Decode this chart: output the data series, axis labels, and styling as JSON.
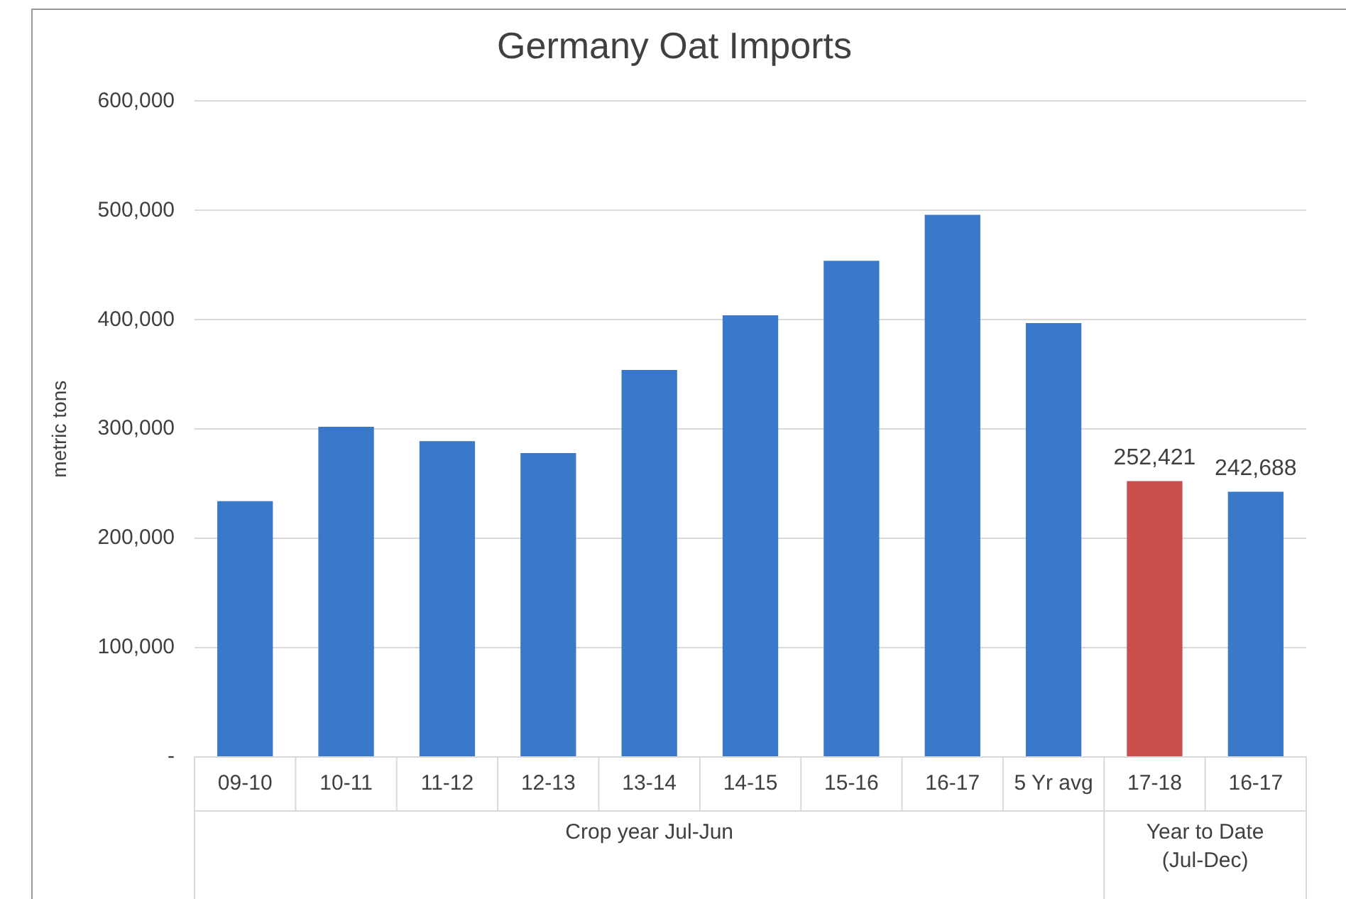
{
  "chart_data": {
    "type": "bar",
    "title": "Germany Oat Imports",
    "ylabel": "metric tons",
    "categories": [
      "09-10",
      "10-11",
      "11-12",
      "12-13",
      "13-14",
      "14-15",
      "15-16",
      "16-17",
      "5 Yr avg",
      "17-18",
      "16-17"
    ],
    "values": [
      234000,
      302000,
      289000,
      278000,
      354000,
      404000,
      454000,
      496000,
      397000,
      252421,
      242688
    ],
    "colors": [
      "#3a78c9",
      "#3a78c9",
      "#3a78c9",
      "#3a78c9",
      "#3a78c9",
      "#3a78c9",
      "#3a78c9",
      "#3a78c9",
      "#3a78c9",
      "#c9504d",
      "#3a78c9"
    ],
    "value_labels": [
      null,
      null,
      null,
      null,
      null,
      null,
      null,
      null,
      null,
      "252,421",
      "242,688"
    ],
    "ylim": [
      0,
      600000
    ],
    "yticks": [
      {
        "value": 0,
        "label": "-"
      },
      {
        "value": 100000,
        "label": "100,000"
      },
      {
        "value": 200000,
        "label": "200,000"
      },
      {
        "value": 300000,
        "label": "300,000"
      },
      {
        "value": 400000,
        "label": "400,000"
      },
      {
        "value": 500000,
        "label": "500,000"
      },
      {
        "value": 600000,
        "label": "600,000"
      }
    ],
    "grid": "y",
    "legend": false,
    "annotations": [
      "Crop year Jul-Jun",
      "Year to Date (Jul-Dec)"
    ]
  }
}
